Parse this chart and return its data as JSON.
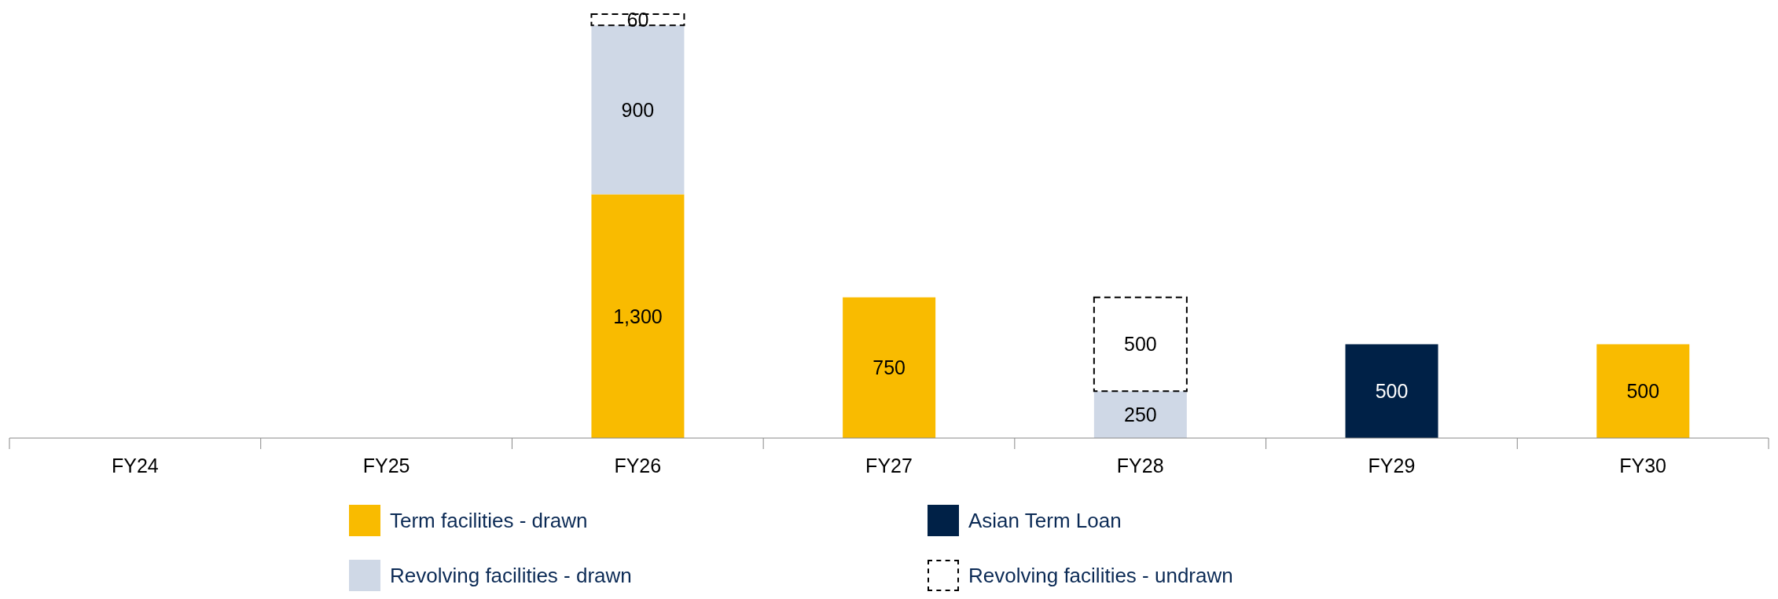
{
  "chart_data": {
    "type": "bar",
    "stacked": true,
    "categories": [
      "FY24",
      "FY25",
      "FY26",
      "FY27",
      "FY28",
      "FY29",
      "FY30"
    ],
    "series": [
      {
        "name": "Term facilities - drawn",
        "color": "#f9bb00",
        "values": [
          null,
          null,
          1300,
          750,
          null,
          null,
          500
        ],
        "value_labels": [
          null,
          null,
          "1,300",
          "750",
          null,
          null,
          "500"
        ]
      },
      {
        "name": "Revolving facilities - drawn",
        "color": "#cfd8e6",
        "values": [
          null,
          null,
          900,
          null,
          250,
          null,
          null
        ],
        "value_labels": [
          null,
          null,
          "900",
          null,
          "250",
          null,
          null
        ]
      },
      {
        "name": "Asian Term Loan",
        "color": "#002147",
        "values": [
          null,
          null,
          null,
          null,
          null,
          500,
          null
        ],
        "value_labels": [
          null,
          null,
          null,
          null,
          null,
          "500",
          null
        ]
      },
      {
        "name": "Revolving facilities - undrawn",
        "color": "#ffffff",
        "line_style": "dashed",
        "values": [
          null,
          null,
          60,
          null,
          500,
          null,
          null
        ],
        "value_labels": [
          null,
          null,
          "60",
          null,
          "500",
          null,
          null
        ]
      }
    ],
    "legend": "bottom",
    "grid": false
  }
}
